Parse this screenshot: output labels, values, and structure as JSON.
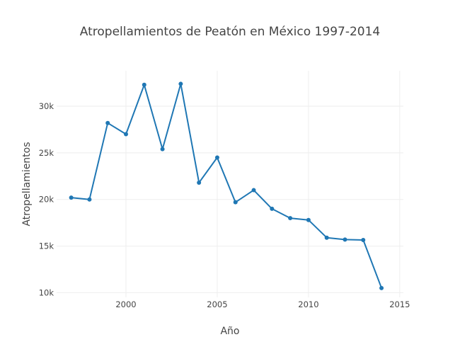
{
  "chart_data": {
    "type": "line",
    "title": "Atropellamientos de Peatón en México 1997-2014",
    "xlabel": "Año",
    "ylabel": "Atropellamientos",
    "grid": true,
    "xlim": [
      1996.2,
      2015.2
    ],
    "ylim": [
      9500,
      33800
    ],
    "x_ticks": [
      2000,
      2005,
      2010,
      2015
    ],
    "x_tick_labels": [
      "2000",
      "2005",
      "2010",
      "2015"
    ],
    "y_ticks": [
      10000,
      15000,
      20000,
      25000,
      30000
    ],
    "y_tick_labels": [
      "10k",
      "15k",
      "20k",
      "25k",
      "30k"
    ],
    "color": "#1f77b4",
    "series": [
      {
        "name": "Atropellamientos",
        "x": [
          1997,
          1998,
          1999,
          2000,
          2001,
          2002,
          2003,
          2004,
          2005,
          2006,
          2007,
          2008,
          2009,
          2010,
          2011,
          2012,
          2013,
          2014
        ],
        "y": [
          20200,
          20000,
          28200,
          27000,
          32300,
          25400,
          32400,
          21800,
          24500,
          19700,
          21000,
          19000,
          18000,
          17800,
          15900,
          15700,
          15650,
          10500
        ]
      }
    ]
  }
}
